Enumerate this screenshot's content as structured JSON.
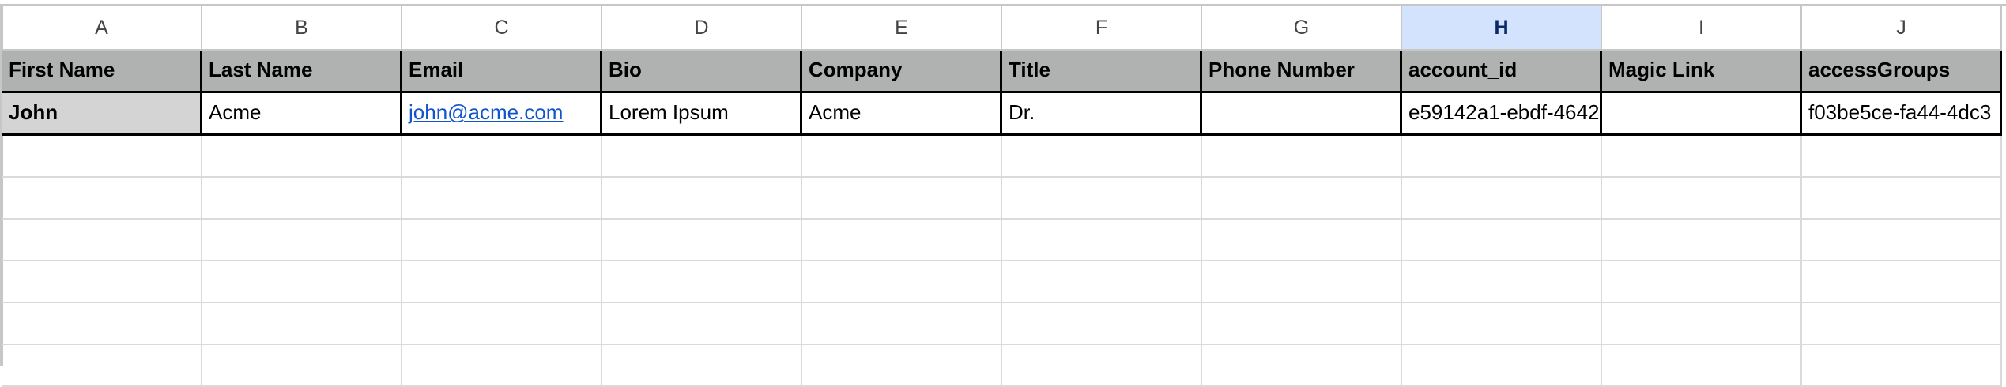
{
  "columns": [
    "A",
    "B",
    "C",
    "D",
    "E",
    "F",
    "G",
    "H",
    "I",
    "J"
  ],
  "selected_column": "H",
  "header_row": [
    "First Name",
    "Last Name",
    "Email",
    "Bio",
    "Company",
    "Title",
    "Phone Number",
    "account_id",
    "Magic Link",
    "accessGroups"
  ],
  "data_row": [
    "John",
    "Acme",
    "john@acme.com",
    "Lorem Ipsum",
    "Acme",
    "Dr.",
    "",
    "e59142a1-ebdf-4642",
    "",
    "f03be5ce-fa44-4dc3"
  ],
  "colors": {
    "header_bg": "#b0b2b1",
    "selected_col_bg": "#d3e3fd",
    "link": "#1155cc"
  }
}
